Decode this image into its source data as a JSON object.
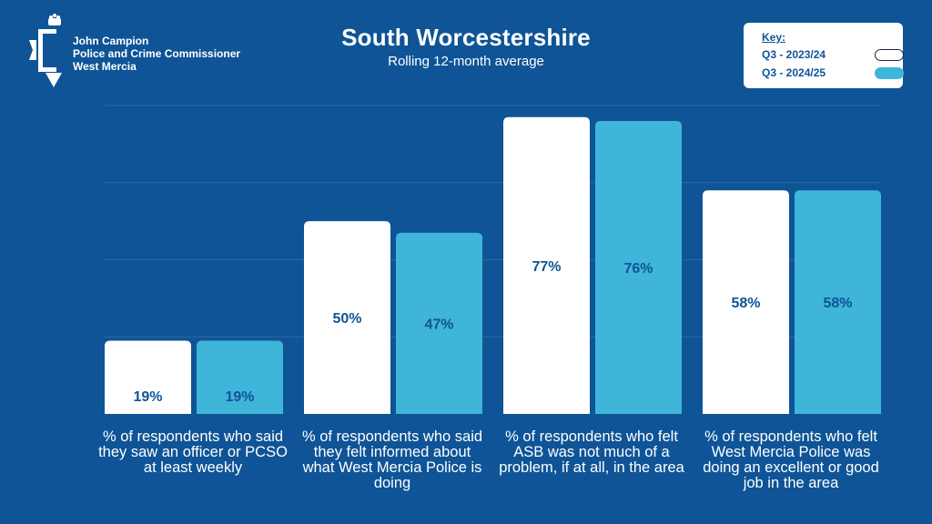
{
  "logo": {
    "name": "John Campion",
    "role": "Police and Crime Commissioner",
    "area": "West Mercia",
    "icon": "crown-star-icon"
  },
  "colors": {
    "background": "#0f5496",
    "series_2023": "#ffffff",
    "series_2024": "#3fb5d9",
    "label_text": "#0f5496"
  },
  "legend": {
    "title": "Key:",
    "items": [
      {
        "label": "Q3 - 2023/24",
        "color": "#ffffff"
      },
      {
        "label": "Q3 - 2024/25",
        "color": "#3fb5d9"
      }
    ]
  },
  "chart_data": {
    "type": "bar",
    "title": "South Worcestershire",
    "subtitle": "Rolling 12-month average",
    "categories": [
      "% of respondents who said they saw an officer or PCSO at least weekly",
      "% of respondents who said they felt informed about what West Mercia Police is doing",
      "% of respondents who felt ASB was not much of a problem, if at all, in the area",
      "% of respondents who felt West Mercia Police was doing an excellent or good job in the area"
    ],
    "series": [
      {
        "name": "Q3 - 2023/24",
        "values": [
          19,
          50,
          77,
          58
        ],
        "labels": [
          "19%",
          "50%",
          "77%",
          "58%"
        ]
      },
      {
        "name": "Q3 - 2024/25",
        "values": [
          19,
          47,
          76,
          58
        ],
        "labels": [
          "19%",
          "47%",
          "76%",
          "58%"
        ]
      }
    ],
    "ylim": [
      0,
      80
    ],
    "grid": true,
    "legend_position": "top-right"
  }
}
